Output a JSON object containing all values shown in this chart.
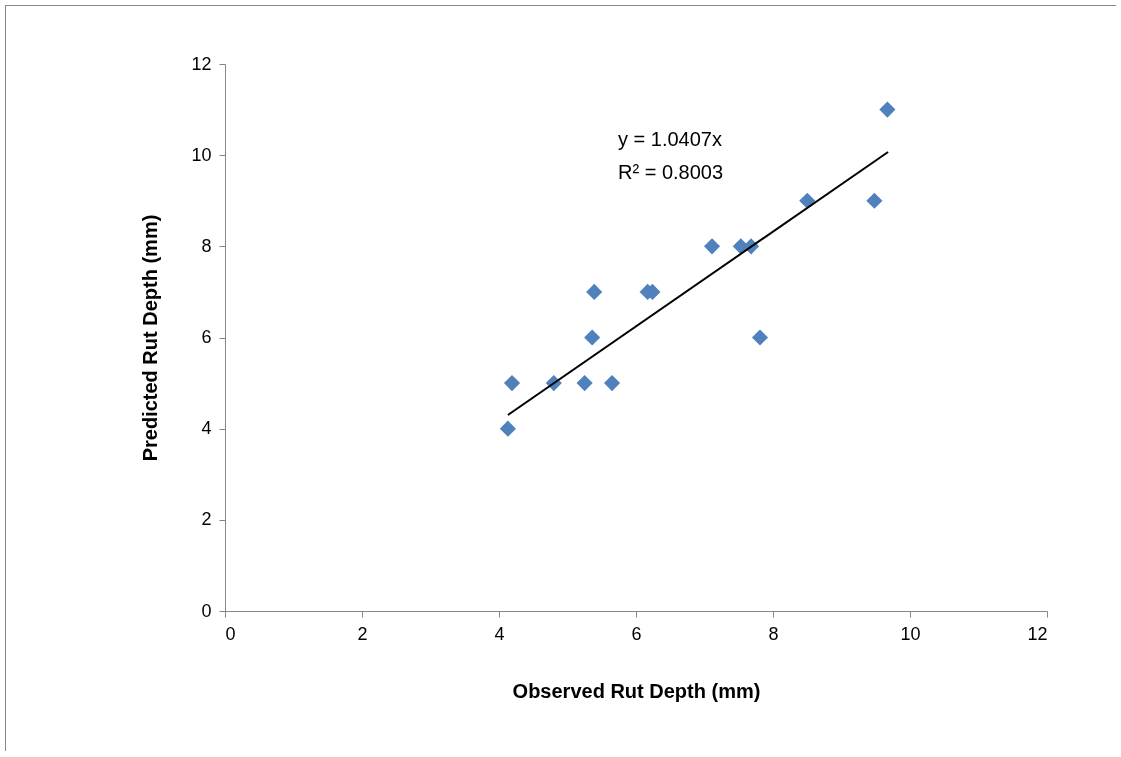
{
  "chart_data": {
    "type": "scatter",
    "xlabel": "Observed Rut Depth (mm)",
    "ylabel": "Predicted Rut Depth (mm)",
    "xlim": [
      0,
      12
    ],
    "xticks": [
      0,
      2,
      4,
      6,
      8,
      10,
      12
    ],
    "ylim": [
      0,
      12
    ],
    "yticks": [
      0,
      2,
      4,
      6,
      8,
      10,
      12
    ],
    "grid": false,
    "annotations": [
      "y = 1.0407x",
      "R² = 0.8003"
    ],
    "series": [
      {
        "marker": "diamond",
        "color": "#4f81bd",
        "x": [
          4.13,
          4.19,
          4.8,
          5.25,
          5.65,
          5.36,
          5.39,
          6.17,
          6.24,
          7.11,
          7.53,
          7.68,
          7.81,
          8.5,
          9.48,
          9.67
        ],
        "values": [
          4,
          5,
          5,
          5,
          5,
          6,
          7,
          7,
          7,
          8,
          8,
          8,
          6,
          9,
          9,
          11
        ]
      },
      {
        "type": "line",
        "marker": "none",
        "color": "#000000",
        "x": [
          4.13,
          9.68
        ],
        "values": [
          4.3,
          10.07
        ]
      }
    ]
  }
}
